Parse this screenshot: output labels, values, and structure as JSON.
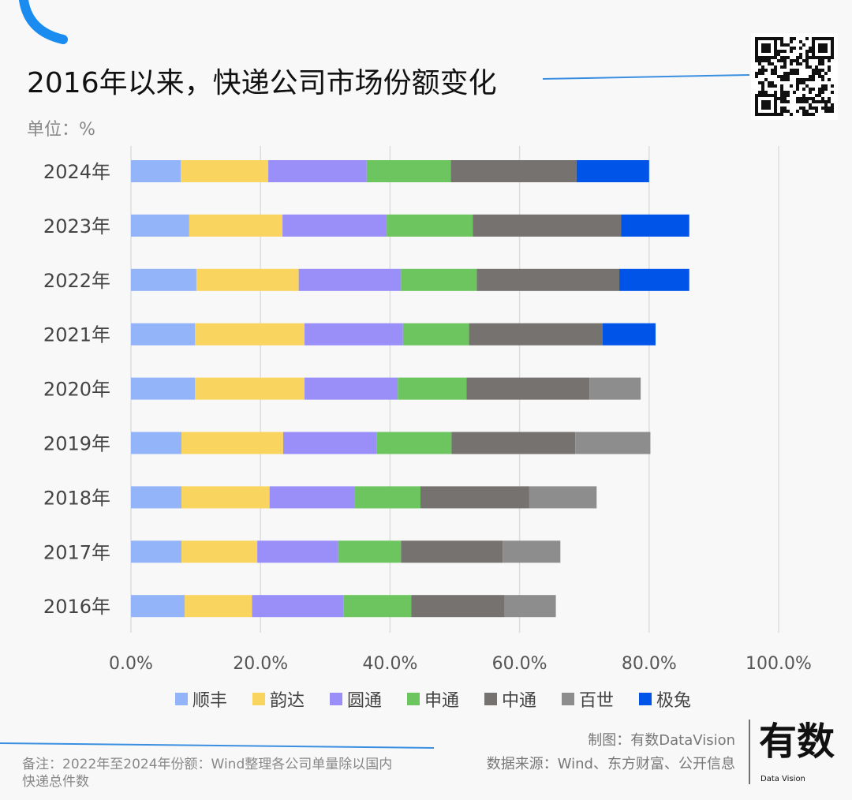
{
  "title": "2016年以来，快递公司市场份额变化",
  "unit": "单位：%",
  "note": "备注：2022年至2024年份额：Wind整理各公司单量除以国内快递总件数",
  "credit": {
    "made_by": "制图：有数DataVision",
    "source": "数据来源：Wind、东方财富、公开信息"
  },
  "logo": {
    "text": "有数",
    "sub": "Data Vision"
  },
  "chart_data": {
    "type": "bar",
    "orientation": "horizontal",
    "stacked": true,
    "categories": [
      "2024年",
      "2023年",
      "2022年",
      "2021年",
      "2020年",
      "2019年",
      "2018年",
      "2017年",
      "2016年"
    ],
    "series": [
      {
        "name": "顺丰",
        "color": "#93b4f8",
        "values": [
          7.7,
          9.0,
          10.1,
          9.9,
          9.9,
          7.8,
          7.8,
          7.8,
          8.3
        ]
      },
      {
        "name": "韵达",
        "color": "#f9d55f",
        "values": [
          13.5,
          14.4,
          15.8,
          16.9,
          16.9,
          15.7,
          13.6,
          11.7,
          10.4
        ]
      },
      {
        "name": "圆通",
        "color": "#9a8ff8",
        "values": [
          15.2,
          16.1,
          15.8,
          15.2,
          14.4,
          14.4,
          13.2,
          12.5,
          14.1
        ]
      },
      {
        "name": "申通",
        "color": "#6cc55e",
        "values": [
          13.0,
          13.3,
          11.7,
          10.2,
          10.6,
          11.6,
          10.1,
          9.7,
          10.5
        ]
      },
      {
        "name": "中通",
        "color": "#757270",
        "values": [
          19.4,
          22.9,
          22.0,
          20.6,
          19.0,
          19.1,
          16.8,
          15.7,
          14.4
        ]
      },
      {
        "name": "百世",
        "color": "#8c8d8c",
        "values": [
          0,
          0,
          0,
          0,
          7.9,
          11.6,
          10.4,
          8.9,
          7.9
        ]
      },
      {
        "name": "极兔",
        "color": "#0055e8",
        "values": [
          11.2,
          10.5,
          10.8,
          8.2,
          0,
          0,
          0,
          0,
          0
        ]
      }
    ],
    "xlim": [
      0,
      100
    ],
    "xticks": [
      "0.0%",
      "20.0%",
      "40.0%",
      "60.0%",
      "80.0%",
      "100.0%"
    ],
    "grid": true,
    "legend": "bottom"
  }
}
